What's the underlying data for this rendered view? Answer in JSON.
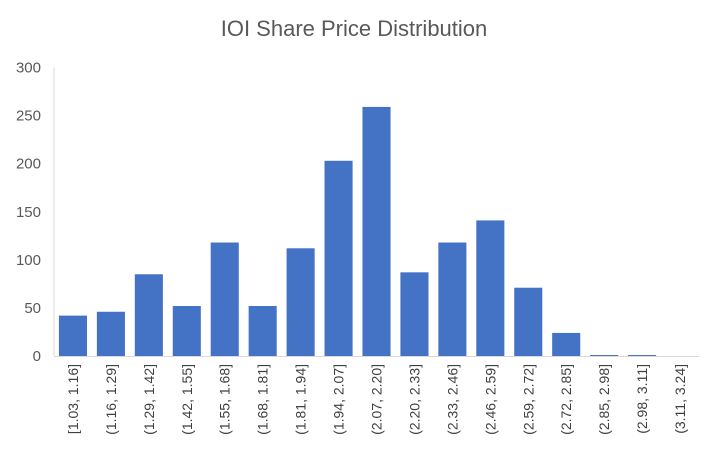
{
  "chart_data": {
    "type": "bar",
    "title": "IOI Share Price Distribution",
    "xlabel": "",
    "ylabel": "",
    "categories": [
      "[1.03, 1.16]",
      "(1.16, 1.29]",
      "(1.29, 1.42]",
      "(1.42, 1.55]",
      "(1.55, 1.68]",
      "(1.68, 1.81]",
      "(1.81, 1.94]",
      "(1.94, 2.07]",
      "(2.07, 2.20]",
      "(2.20, 2.33]",
      "(2.33, 2.46]",
      "(2.46, 2.59]",
      "(2.59, 2.72]",
      "(2.72, 2.85]",
      "(2.85, 2.98]",
      "(2.98, 3.11]",
      "(3.11, 3.24]"
    ],
    "values": [
      42,
      46,
      85,
      52,
      118,
      52,
      112,
      203,
      259,
      87,
      118,
      141,
      71,
      24,
      1,
      1,
      0
    ],
    "ylim": [
      0,
      300
    ],
    "yticks": [
      0,
      50,
      100,
      150,
      200,
      250,
      300
    ],
    "grid": false,
    "legend": "none",
    "bar_color": "#4472C4"
  }
}
